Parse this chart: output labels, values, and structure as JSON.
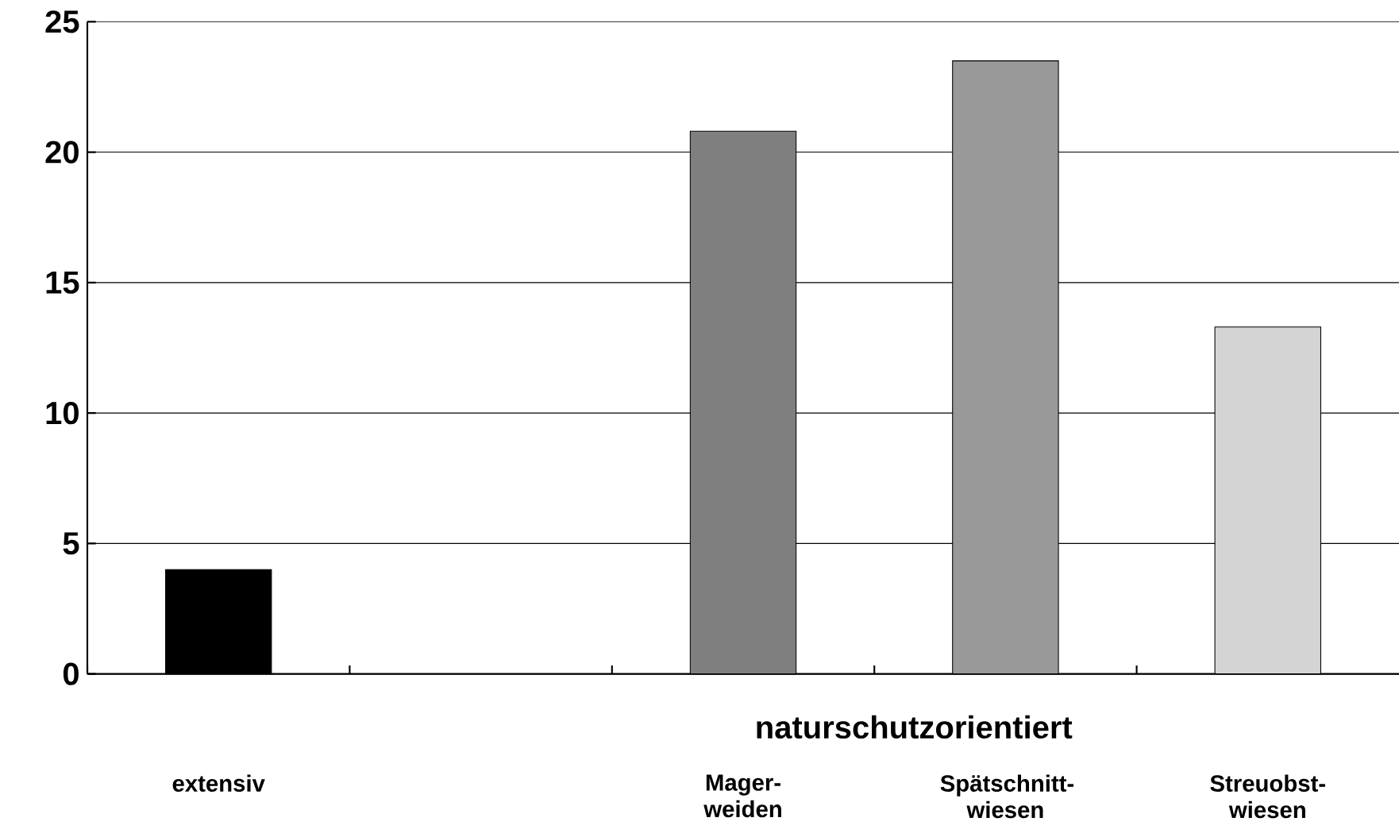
{
  "chart_data": {
    "type": "bar",
    "categories": [
      "extensiv",
      null,
      "Mager-weiden",
      "Spätschnitt-wiesen",
      "Streuobst-wiesen"
    ],
    "values": [
      4.0,
      null,
      20.8,
      23.5,
      13.3
    ],
    "colors": [
      "#000000",
      null,
      "#7f7f7f",
      "#999999",
      "#d4d4d4"
    ],
    "ylim": [
      0,
      25
    ],
    "yticks": [
      0,
      5,
      10,
      15,
      20,
      25
    ],
    "grid": "y",
    "annotations": [
      "naturschutzorientiert"
    ]
  }
}
